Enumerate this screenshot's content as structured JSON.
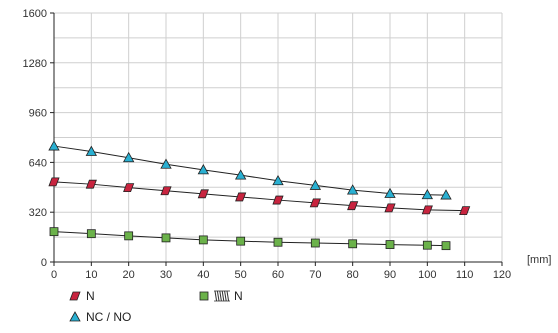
{
  "chart_data": {
    "type": "line",
    "title": "",
    "xlabel": "",
    "ylabel": "",
    "x_unit": "[mm]",
    "xlim": [
      0,
      120
    ],
    "ylim": [
      0,
      1600
    ],
    "x_ticks": [
      0,
      10,
      20,
      30,
      40,
      50,
      60,
      70,
      80,
      90,
      100,
      110,
      120
    ],
    "y_ticks": [
      0,
      320,
      640,
      960,
      1280,
      1600
    ],
    "grid": true,
    "legend_position": "bottom-left",
    "series": [
      {
        "name": "N",
        "marker": "parallelogram",
        "color": "#c8243f",
        "x": [
          0,
          10,
          20,
          30,
          40,
          50,
          60,
          70,
          80,
          90,
          100,
          110
        ],
        "values": [
          515,
          500,
          478,
          458,
          438,
          418,
          398,
          380,
          362,
          348,
          335,
          330
        ]
      },
      {
        "name": "NC / NO",
        "marker": "triangle",
        "color": "#2ab0d2",
        "x": [
          0,
          10,
          20,
          30,
          40,
          50,
          60,
          70,
          80,
          90,
          100,
          105
        ],
        "values": [
          745,
          710,
          670,
          628,
          592,
          558,
          522,
          492,
          462,
          440,
          432,
          430
        ]
      },
      {
        "name": "N",
        "name_prefix_icon": "spring-icon",
        "marker": "square",
        "color": "#6bb24a",
        "x": [
          0,
          10,
          20,
          30,
          40,
          50,
          60,
          70,
          80,
          90,
          100,
          105
        ],
        "values": [
          195,
          182,
          168,
          155,
          142,
          134,
          127,
          122,
          117,
          112,
          108,
          105
        ]
      }
    ]
  }
}
